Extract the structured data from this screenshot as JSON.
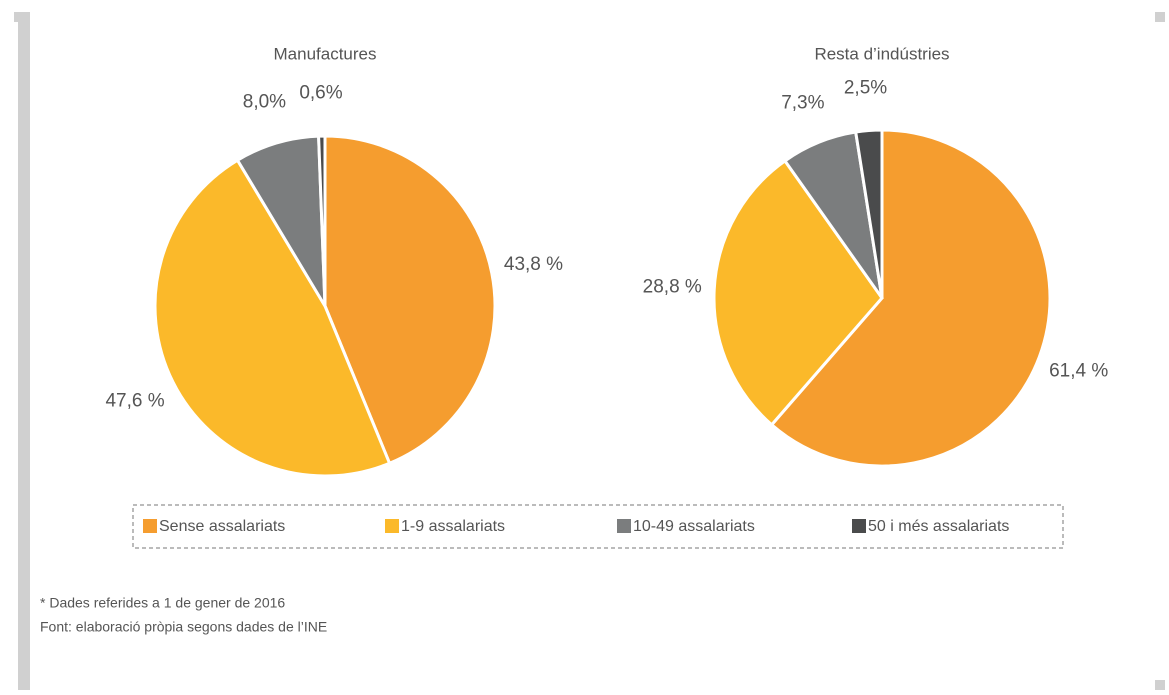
{
  "chart_data": [
    {
      "type": "pie",
      "title": "Manufactures",
      "values": [
        43.8,
        47.6,
        8.0,
        0.6
      ],
      "value_labels": [
        "43,8 %",
        "47,6 %",
        "8,0%",
        "0,6%"
      ]
    },
    {
      "type": "pie",
      "title": "Resta d’indústries",
      "values": [
        61.4,
        28.8,
        7.3,
        2.5
      ],
      "value_labels": [
        "61,4 %",
        "28,8 %",
        "7,3%",
        "2,5%"
      ]
    }
  ],
  "legend": {
    "labels": [
      "Sense assalariats",
      "1-9 assalariats",
      "10-49 assalariats",
      "50 i més assalariats"
    ],
    "colors": [
      "#f59d2f",
      "#fbb92a",
      "#7b7d7e",
      "#4a4b4c"
    ]
  },
  "notes": [
    "* Dades referides a 1 de gener de 2016",
    "Font: elaboració pròpia segons dades de l’INE"
  ]
}
